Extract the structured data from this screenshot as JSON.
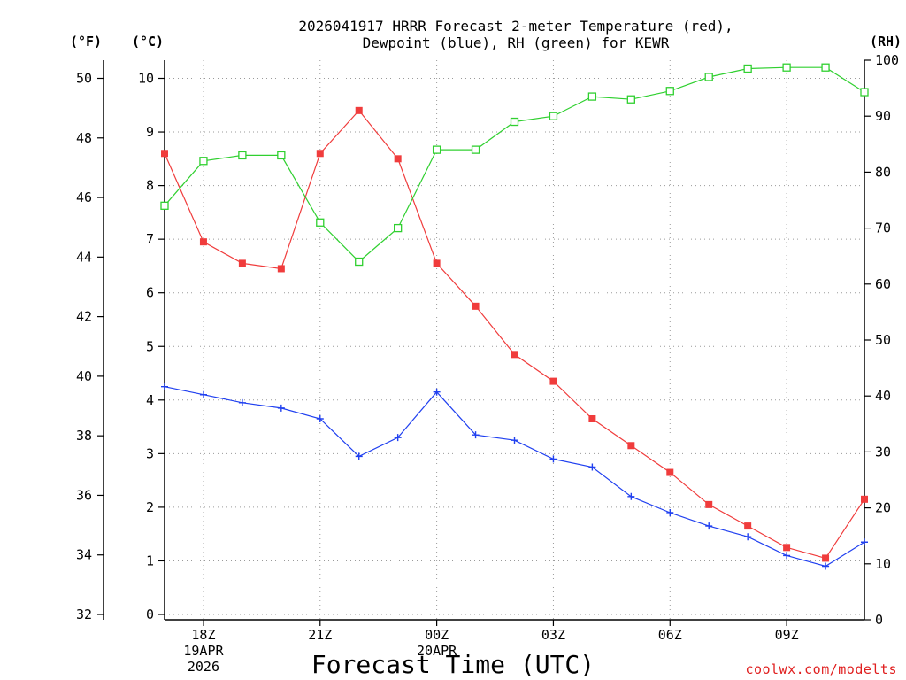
{
  "chart_data": {
    "type": "line",
    "title": [
      "2026041917 HRRR Forecast 2-meter Temperature (red),",
      "Dewpoint (blue), RH (green) for KEWR"
    ],
    "xlabel": "Forecast Time (UTC)",
    "credit": "coolwx.com/modelts",
    "units": {
      "left_outer": "(°F)",
      "left_inner": "(°C)",
      "right": "(RH)"
    },
    "x_hours": [
      17,
      18,
      19,
      20,
      21,
      22,
      23,
      24,
      25,
      26,
      27,
      28,
      29,
      30,
      31,
      32,
      33,
      34,
      35
    ],
    "x_ticks": [
      {
        "hour": 18,
        "lines": [
          "18Z",
          "19APR",
          "2026"
        ]
      },
      {
        "hour": 21,
        "lines": [
          "21Z"
        ]
      },
      {
        "hour": 24,
        "lines": [
          "00Z",
          "20APR"
        ]
      },
      {
        "hour": 27,
        "lines": [
          "03Z"
        ]
      },
      {
        "hour": 30,
        "lines": [
          "06Z"
        ]
      },
      {
        "hour": 33,
        "lines": [
          "09Z"
        ]
      }
    ],
    "xlim": [
      17,
      35
    ],
    "ylim_c": [
      0,
      10.4
    ],
    "ylim_rh": [
      0,
      100
    ],
    "yticks_c": [
      "0",
      "1",
      "2",
      "3",
      "4",
      "5",
      "6",
      "7",
      "8",
      "9",
      "10"
    ],
    "yticks_f": [
      "32",
      "34",
      "36",
      "38",
      "40",
      "42",
      "44",
      "46",
      "48",
      "50"
    ],
    "yticks_rh": [
      "0",
      "10",
      "20",
      "30",
      "40",
      "50",
      "60",
      "70",
      "80",
      "90",
      "100"
    ],
    "series": [
      {
        "name": "Temperature (°C)",
        "color": "#f03c3c",
        "marker": "filled-square",
        "axis": "c",
        "values": [
          8.6,
          6.95,
          6.55,
          6.45,
          8.6,
          9.4,
          8.5,
          6.55,
          5.75,
          4.85,
          4.35,
          3.65,
          3.15,
          2.65,
          2.05,
          1.65,
          1.25,
          1.05,
          2.15
        ]
      },
      {
        "name": "Dewpoint (°C)",
        "color": "#2040f0",
        "marker": "plus",
        "axis": "c",
        "values": [
          4.25,
          4.1,
          3.95,
          3.85,
          3.65,
          2.95,
          3.3,
          4.15,
          3.35,
          3.25,
          2.9,
          2.75,
          2.2,
          1.9,
          1.65,
          1.45,
          1.1,
          0.9,
          1.35
        ]
      },
      {
        "name": "RH (%)",
        "color": "#30d030",
        "marker": "open-square",
        "axis": "rh",
        "values": [
          74,
          82,
          83,
          83,
          71,
          64,
          70,
          84,
          84,
          89,
          90,
          93.5,
          93,
          94.5,
          97,
          98.5,
          98.7,
          98.7,
          94.3
        ]
      }
    ]
  }
}
